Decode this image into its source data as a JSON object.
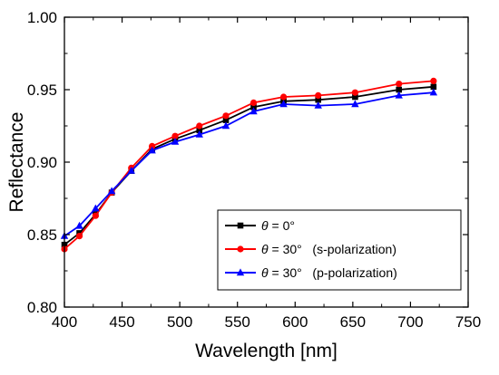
{
  "chart_data": {
    "type": "line",
    "xlabel": "Wavelength [nm]",
    "ylabel": "Reflectance",
    "xlim": [
      400,
      750
    ],
    "ylim": [
      0.8,
      1.0
    ],
    "xticks": [
      400,
      450,
      500,
      550,
      600,
      650,
      700,
      750
    ],
    "yticks": [
      0.8,
      0.85,
      0.9,
      0.95,
      1.0
    ],
    "xtick_labels": [
      "400",
      "450",
      "500",
      "550",
      "600",
      "650",
      "700",
      "750"
    ],
    "ytick_labels": [
      "0.80",
      "0.85",
      "0.90",
      "0.95",
      "1.00"
    ],
    "grid": false,
    "legend_position": "bottom-right",
    "x": [
      400,
      413,
      427,
      441,
      458,
      476,
      496,
      517,
      540,
      564,
      590,
      620,
      652,
      690,
      720
    ],
    "series": [
      {
        "name": "θ = 0°",
        "legend_prefix": "θ",
        "legend_suffix": " = 0°",
        "color": "#000000",
        "marker": "square",
        "values": [
          0.843,
          0.851,
          0.864,
          0.879,
          0.894,
          0.909,
          0.916,
          0.922,
          0.929,
          0.938,
          0.942,
          0.943,
          0.945,
          0.95,
          0.952
        ]
      },
      {
        "name": "θ = 30° (s-polarization)",
        "legend_prefix": "θ",
        "legend_suffix": " = 30°   (s-polarization)",
        "color": "#ff0000",
        "marker": "circle",
        "values": [
          0.84,
          0.849,
          0.863,
          0.879,
          0.896,
          0.911,
          0.918,
          0.925,
          0.932,
          0.941,
          0.945,
          0.946,
          0.948,
          0.954,
          0.956
        ]
      },
      {
        "name": "θ = 30° (p-polarization)",
        "legend_prefix": "θ",
        "legend_suffix": " = 30°   (p-polarization)",
        "color": "#0000ff",
        "marker": "triangle",
        "values": [
          0.849,
          0.856,
          0.868,
          0.88,
          0.894,
          0.908,
          0.914,
          0.919,
          0.925,
          0.935,
          0.94,
          0.939,
          0.94,
          0.946,
          0.948
        ]
      }
    ]
  }
}
